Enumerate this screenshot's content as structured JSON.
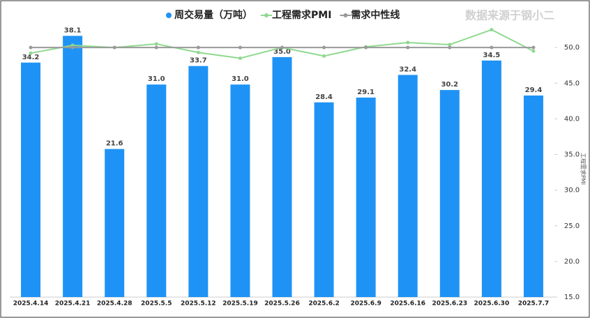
{
  "chart_data": {
    "type": "bar-line",
    "watermark": "数据来源于钢小二",
    "y2_label": "工程需求PMI",
    "categories": [
      "2025.4.14",
      "2025.4.21",
      "2025.4.28",
      "2025.5.5",
      "2025.5.12",
      "2025.5.19",
      "2025.5.26",
      "2025.6.2",
      "2025.6.9",
      "2025.6.16",
      "2025.6.23",
      "2025.6.30",
      "2025.7.7"
    ],
    "series": [
      {
        "name": "周交易量（万吨）",
        "color": "#1f93f5",
        "type": "bar",
        "values": [
          34.2,
          38.1,
          21.6,
          31.0,
          33.7,
          31.0,
          35.0,
          28.4,
          29.1,
          32.4,
          30.2,
          34.5,
          29.4
        ],
        "value_labels": [
          "34.2",
          "38.1",
          "21.6",
          "31.0",
          "33.7",
          "31.0",
          "35.0",
          "28.4",
          "29.1",
          "32.4",
          "30.2",
          "34.5",
          "29.4"
        ]
      },
      {
        "name": "工程需求PMI",
        "color": "#8fd98f",
        "type": "line",
        "axis": "y2",
        "values": [
          49.2,
          50.3,
          50.0,
          50.5,
          49.3,
          48.5,
          50.0,
          48.8,
          50.1,
          50.7,
          50.4,
          52.5,
          49.5
        ]
      },
      {
        "name": "需求中性线",
        "color": "#999999",
        "type": "line",
        "axis": "y2",
        "values": [
          50,
          50,
          50,
          50,
          50,
          50,
          50,
          50,
          50,
          50,
          50,
          50,
          50
        ]
      }
    ],
    "ylim": [
      0,
      41.6
    ],
    "y2lim": [
      15,
      55
    ],
    "y2ticks": [
      {
        "value": 15,
        "label": "15.0"
      },
      {
        "value": 20,
        "label": "20.0"
      },
      {
        "value": 25,
        "label": "25.0"
      },
      {
        "value": 30,
        "label": "30.0"
      },
      {
        "value": 35,
        "label": "35.0"
      },
      {
        "value": 40,
        "label": "40.0"
      },
      {
        "value": 45,
        "label": "45.0"
      },
      {
        "value": 50,
        "label": "50.0"
      }
    ]
  }
}
